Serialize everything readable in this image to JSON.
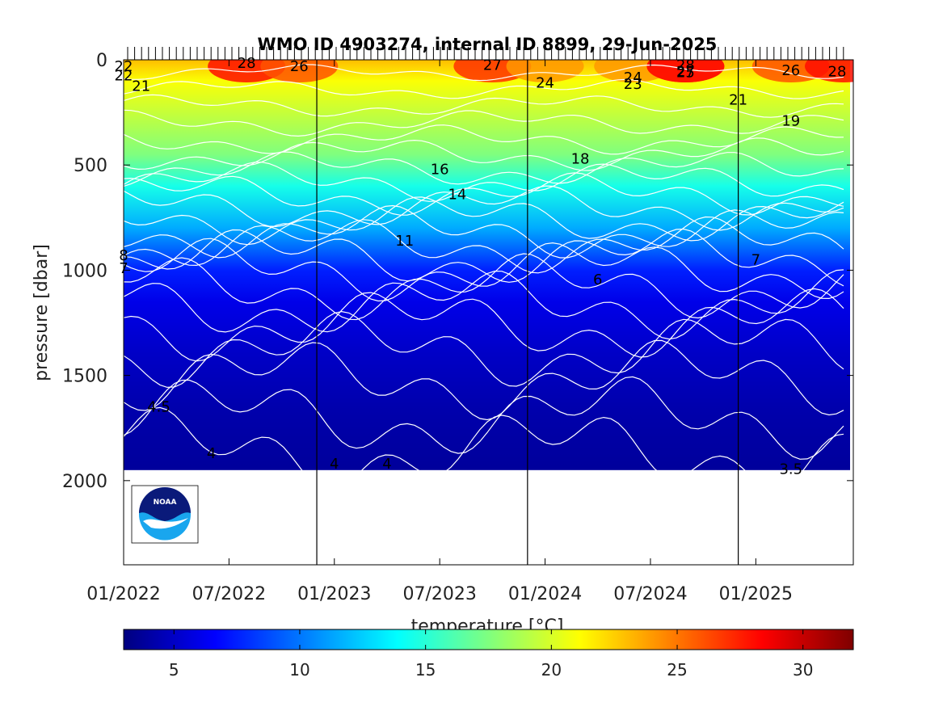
{
  "chart_data": {
    "type": "heatmap",
    "title": "WMO ID 4903274, internal ID 8899, 29-Jun-2025",
    "xlabel": "",
    "ylabel": "pressure [dbar]",
    "colorbar_label": "temperature [°C]",
    "x_ticks": [
      "01/2022",
      "07/2022",
      "01/2023",
      "07/2023",
      "01/2024",
      "07/2024",
      "01/2025"
    ],
    "x_range": [
      "2022-01",
      "2025-06"
    ],
    "y_ticks": [
      0,
      500,
      1000,
      1500,
      2000
    ],
    "y_range": [
      0,
      2400
    ],
    "y_reversed": true,
    "colorbar_ticks": [
      5,
      10,
      15,
      20,
      25,
      30
    ],
    "color_range": [
      3,
      32
    ],
    "colormap": "jet",
    "colormap_stops": [
      "#00007f",
      "#0000ff",
      "#007fff",
      "#00ffff",
      "#7fff7f",
      "#ffff00",
      "#ff7f00",
      "#ff0000",
      "#7f0000"
    ],
    "year_boundaries": [
      "2022-12",
      "2023-12",
      "2024-12"
    ],
    "profile_depth_dbar": 1950,
    "temperature_vs_pressure": [
      {
        "p": 0,
        "t": 23
      },
      {
        "p": 100,
        "t": 21
      },
      {
        "p": 250,
        "t": 19.5
      },
      {
        "p": 450,
        "t": 17.5
      },
      {
        "p": 600,
        "t": 14.5
      },
      {
        "p": 800,
        "t": 11.5
      },
      {
        "p": 1000,
        "t": 7.5
      },
      {
        "p": 1150,
        "t": 6
      },
      {
        "p": 1400,
        "t": 5
      },
      {
        "p": 1650,
        "t": 4.3
      },
      {
        "p": 1950,
        "t": 3.8
      }
    ],
    "contour_labels": [
      {
        "text": "22",
        "date": "2022-01",
        "p": 30
      },
      {
        "text": "22",
        "date": "2022-01",
        "p": 75
      },
      {
        "text": "21",
        "date": "2022-02",
        "p": 125
      },
      {
        "text": "28",
        "date": "2022-08",
        "p": 15
      },
      {
        "text": "26",
        "date": "2022-11",
        "p": 30
      },
      {
        "text": "27",
        "date": "2023-10",
        "p": 25
      },
      {
        "text": "24",
        "date": "2024-01",
        "p": 110
      },
      {
        "text": "24",
        "date": "2024-06",
        "p": 85
      },
      {
        "text": "23",
        "date": "2024-06",
        "p": 115
      },
      {
        "text": "25",
        "date": "2024-09",
        "p": 60
      },
      {
        "text": "27",
        "date": "2024-09",
        "p": 55
      },
      {
        "text": "28",
        "date": "2024-09",
        "p": 25
      },
      {
        "text": "21",
        "date": "2024-12",
        "p": 190
      },
      {
        "text": "26",
        "date": "2025-03",
        "p": 50
      },
      {
        "text": "28",
        "date": "2025-06",
        "p": 55
      },
      {
        "text": "19",
        "date": "2025-03",
        "p": 290
      },
      {
        "text": "18",
        "date": "2024-03",
        "p": 470
      },
      {
        "text": "16",
        "date": "2023-07",
        "p": 520
      },
      {
        "text": "14",
        "date": "2023-08",
        "p": 640
      },
      {
        "text": "11",
        "date": "2023-05",
        "p": 860
      },
      {
        "text": "8",
        "date": "2022-01",
        "p": 930
      },
      {
        "text": "7",
        "date": "2022-01",
        "p": 990
      },
      {
        "text": "7",
        "date": "2025-01",
        "p": 950
      },
      {
        "text": "6",
        "date": "2024-04",
        "p": 1045
      },
      {
        "text": "4.5",
        "date": "2022-03",
        "p": 1650
      },
      {
        "text": "4",
        "date": "2022-06",
        "p": 1870
      },
      {
        "text": "4",
        "date": "2023-01",
        "p": 1920
      },
      {
        "text": "4",
        "date": "2023-04",
        "p": 1920
      },
      {
        "text": "3.5",
        "date": "2025-03",
        "p": 1945
      }
    ]
  },
  "logo": {
    "name": "NOAA",
    "text": "NOAA"
  },
  "colors": {
    "frame": "#000000",
    "contour_line": "#ffffff",
    "background": "#ffffff",
    "logo_blue": "#0a1a7a",
    "logo_cyan": "#19a6ee"
  }
}
